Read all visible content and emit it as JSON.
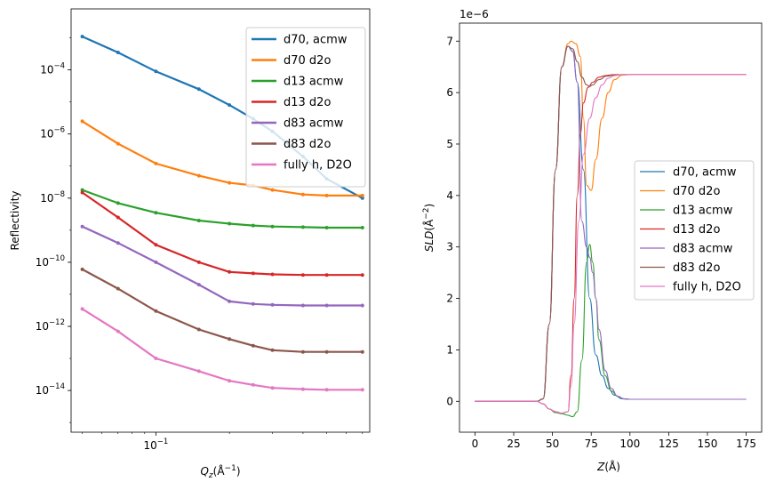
{
  "colors": [
    "#1f77b4",
    "#ff7f0e",
    "#2ca02c",
    "#d62728",
    "#9467bd",
    "#8c564b",
    "#e377c2"
  ],
  "chart_data": [
    {
      "type": "line",
      "xscale": "log",
      "yscale": "log",
      "xlim": [
        0.045,
        0.75
      ],
      "ylim": [
        5e-16,
        0.008
      ],
      "xlabel_main": "Q",
      "xlabel_sub": "z",
      "xlabel_unit_open": "(Å",
      "xlabel_unit_sup": "−1",
      "xlabel_unit_close": ")",
      "ylabel": "Reflectivity",
      "xticks": [
        {
          "value": 0.1,
          "base": "10",
          "exp": "−1"
        }
      ],
      "yticks": [
        {
          "value": 0.0001,
          "base": "10",
          "exp": "−4"
        },
        {
          "value": 1e-06,
          "base": "10",
          "exp": "−6"
        },
        {
          "value": 1e-08,
          "base": "10",
          "exp": "−8"
        },
        {
          "value": 1e-10,
          "base": "10",
          "exp": "−10"
        },
        {
          "value": 1e-12,
          "base": "10",
          "exp": "−12"
        },
        {
          "value": 1e-14,
          "base": "10",
          "exp": "−14"
        }
      ],
      "legend_position": "top-right",
      "series": [
        {
          "name": "d70, acmw",
          "x": [
            0.05,
            0.07,
            0.1,
            0.15,
            0.2,
            0.25,
            0.3,
            0.4,
            0.5,
            0.7
          ],
          "y": [
            0.0011,
            0.00035,
            9e-05,
            2.5e-05,
            8e-06,
            3e-06,
            1.2e-06,
            2e-07,
            4e-08,
            1e-08
          ]
        },
        {
          "name": "d70 d2o",
          "x": [
            0.05,
            0.07,
            0.1,
            0.15,
            0.2,
            0.25,
            0.3,
            0.4,
            0.5,
            0.7
          ],
          "y": [
            2.5e-06,
            5e-07,
            1.2e-07,
            5e-08,
            3e-08,
            2.5e-08,
            1.8e-08,
            1.3e-08,
            1.2e-08,
            1.2e-08
          ]
        },
        {
          "name": "d13 acmw",
          "x": [
            0.05,
            0.07,
            0.1,
            0.15,
            0.2,
            0.25,
            0.3,
            0.4,
            0.5,
            0.7
          ],
          "y": [
            1.8e-08,
            7e-09,
            3.5e-09,
            2e-09,
            1.6e-09,
            1.4e-09,
            1.3e-09,
            1.25e-09,
            1.2e-09,
            1.2e-09
          ]
        },
        {
          "name": "d13 d2o",
          "x": [
            0.05,
            0.07,
            0.1,
            0.15,
            0.2,
            0.25,
            0.3,
            0.4,
            0.5,
            0.7
          ],
          "y": [
            1.5e-08,
            2.5e-09,
            3.5e-10,
            1e-10,
            5e-11,
            4.5e-11,
            4.2e-11,
            4e-11,
            4e-11,
            4e-11
          ]
        },
        {
          "name": "d83 acmw",
          "x": [
            0.05,
            0.07,
            0.1,
            0.15,
            0.2,
            0.25,
            0.3,
            0.4,
            0.5,
            0.7
          ],
          "y": [
            1.3e-09,
            4e-10,
            1e-10,
            2e-11,
            6e-12,
            5e-12,
            4.7e-12,
            4.5e-12,
            4.5e-12,
            4.5e-12
          ]
        },
        {
          "name": "d83 d2o",
          "x": [
            0.05,
            0.07,
            0.1,
            0.15,
            0.2,
            0.25,
            0.3,
            0.4,
            0.5,
            0.7
          ],
          "y": [
            6e-11,
            1.5e-11,
            3e-12,
            8e-13,
            4e-13,
            2.5e-13,
            1.8e-13,
            1.6e-13,
            1.6e-13,
            1.6e-13
          ]
        },
        {
          "name": "fully h, D2O",
          "x": [
            0.05,
            0.07,
            0.1,
            0.15,
            0.2,
            0.25,
            0.3,
            0.4,
            0.5,
            0.7
          ],
          "y": [
            3.5e-12,
            7e-13,
            1e-13,
            4e-14,
            2e-14,
            1.5e-14,
            1.2e-14,
            1.1e-14,
            1.05e-14,
            1.05e-14
          ]
        }
      ]
    },
    {
      "type": "line",
      "xlim": [
        -10,
        185
      ],
      "ylim": [
        -0.6,
        7.35
      ],
      "scale_label": "1e−6",
      "xlabel_main": "Z",
      "xlabel_unit": "(Å)",
      "ylabel_main": "SLD",
      "ylabel_unit_open": "(Å",
      "ylabel_unit_sup": "−2",
      "ylabel_unit_close": ")",
      "xticks": [
        0,
        25,
        50,
        75,
        100,
        125,
        150,
        175
      ],
      "yticks": [
        0,
        1,
        2,
        3,
        4,
        5,
        6,
        7
      ],
      "legend_position": "center-right",
      "series": [
        {
          "name": "d70, acmw",
          "x": [
            0,
            40,
            44,
            48,
            52,
            56,
            60,
            63,
            66,
            70,
            74,
            78,
            82,
            86,
            90,
            95,
            100,
            120,
            175
          ],
          "y": [
            0,
            0,
            0.05,
            1.5,
            4.5,
            6.5,
            6.9,
            6.8,
            6.2,
            4.5,
            2,
            0.9,
            0.5,
            0.25,
            0.12,
            0.05,
            0.04,
            0.04,
            0.04
          ]
        },
        {
          "name": "d70 d2o",
          "x": [
            0,
            40,
            44,
            48,
            52,
            56,
            60,
            62,
            65,
            68,
            70,
            72,
            75,
            78,
            82,
            86,
            90,
            95,
            100,
            120,
            175
          ],
          "y": [
            0,
            0,
            0.05,
            1.5,
            4.5,
            6.5,
            6.95,
            7,
            6.95,
            6.7,
            5.5,
            4.2,
            4.1,
            4.7,
            5.5,
            6.0,
            6.25,
            6.34,
            6.35,
            6.35,
            6.35
          ]
        },
        {
          "name": "d13 acmw",
          "x": [
            0,
            40,
            44,
            48,
            52,
            56,
            60,
            63,
            66,
            69,
            72,
            74,
            76,
            78,
            80,
            84,
            88,
            92,
            96,
            100,
            120,
            175
          ],
          "y": [
            0,
            0,
            -0.05,
            -0.15,
            -0.22,
            -0.24,
            -0.27,
            -0.3,
            -0.2,
            0.8,
            2.7,
            3.05,
            2.7,
            2.0,
            1.2,
            0.5,
            0.2,
            0.1,
            0.05,
            0.04,
            0.04,
            0.04
          ]
        },
        {
          "name": "d13 d2o",
          "x": [
            0,
            40,
            44,
            48,
            52,
            56,
            60,
            62,
            64,
            66,
            68,
            70,
            73,
            76,
            80,
            84,
            90,
            95,
            100,
            120,
            175
          ],
          "y": [
            0,
            0,
            -0.05,
            -0.15,
            -0.2,
            -0.23,
            -0.2,
            0.5,
            2,
            4,
            5.2,
            5.8,
            6.1,
            6.2,
            6.3,
            6.33,
            6.35,
            6.35,
            6.35,
            6.35,
            6.35
          ]
        },
        {
          "name": "d83 acmw",
          "x": [
            0,
            40,
            44,
            48,
            52,
            56,
            60,
            63,
            66,
            69,
            72,
            74,
            76,
            78,
            80,
            84,
            88,
            92,
            96,
            100,
            120,
            175
          ],
          "y": [
            0,
            0,
            0.05,
            1.5,
            4.5,
            6.5,
            6.9,
            6.8,
            6.2,
            3.5,
            3.0,
            2.8,
            2.5,
            2.0,
            1.4,
            0.6,
            0.25,
            0.1,
            0.05,
            0.04,
            0.04,
            0.04
          ]
        },
        {
          "name": "d83 d2o",
          "x": [
            0,
            40,
            44,
            48,
            52,
            56,
            60,
            63,
            66,
            69,
            72,
            74,
            76,
            80,
            85,
            90,
            95,
            100,
            120,
            175
          ],
          "y": [
            0,
            0,
            0.05,
            1.5,
            4.5,
            6.5,
            6.9,
            6.85,
            6.6,
            6.3,
            6.15,
            6.12,
            6.15,
            6.25,
            6.32,
            6.34,
            6.35,
            6.35,
            6.35,
            6.35
          ]
        },
        {
          "name": "fully h, D2O",
          "x": [
            0,
            40,
            44,
            48,
            52,
            56,
            60,
            62,
            64,
            67,
            70,
            74,
            78,
            82,
            86,
            90,
            95,
            100,
            120,
            175
          ],
          "y": [
            0,
            0,
            -0.05,
            -0.15,
            -0.2,
            -0.23,
            -0.2,
            0.3,
            1.5,
            3.5,
            4.8,
            5.5,
            5.9,
            6.15,
            6.28,
            6.33,
            6.35,
            6.35,
            6.35,
            6.35
          ]
        }
      ]
    }
  ]
}
